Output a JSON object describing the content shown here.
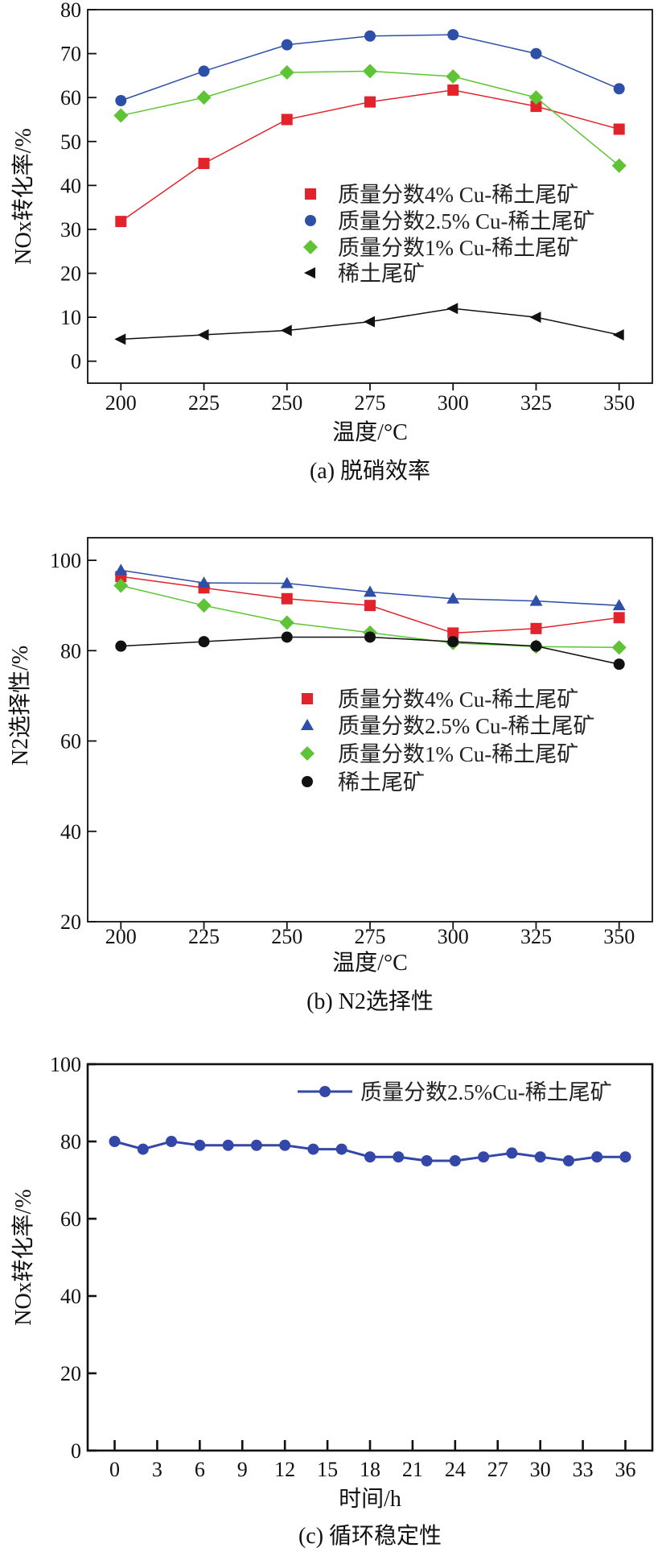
{
  "chart_data": [
    {
      "type": "line",
      "title": "",
      "caption": "(a) 脱硝效率",
      "xlabel": "温度/°C",
      "ylabel": "NOx转化率/%",
      "x": [
        200,
        225,
        250,
        275,
        300,
        325,
        350
      ],
      "xticks": [
        200,
        225,
        250,
        275,
        300,
        325,
        350
      ],
      "yticks": [
        0,
        10,
        20,
        30,
        40,
        50,
        60,
        70,
        80
      ],
      "xlim": [
        190,
        360
      ],
      "ylim": [
        -5,
        80
      ],
      "grid": false,
      "legend_position": "center-right",
      "series": [
        {
          "name": "质量分数4% Cu-稀土尾矿",
          "marker": "square",
          "color": "#e3232b",
          "values": [
            31.8,
            45,
            55,
            59,
            61.7,
            58,
            52.8
          ]
        },
        {
          "name": "质量分数2.5% Cu-稀土尾矿",
          "marker": "circle",
          "color": "#2e4fa8",
          "values": [
            59.3,
            66,
            72,
            74,
            74.3,
            70,
            62
          ]
        },
        {
          "name": "质量分数1% Cu-稀土尾矿",
          "marker": "diamond",
          "color": "#5ec435",
          "values": [
            55.9,
            60,
            65.7,
            66,
            64.8,
            60,
            44.5
          ]
        },
        {
          "name": "稀土尾矿",
          "marker": "triangle-left",
          "color": "#111111",
          "values": [
            5,
            6,
            7,
            9,
            12,
            10,
            6
          ]
        }
      ]
    },
    {
      "type": "line",
      "title": "",
      "caption": "(b) N2选择性",
      "xlabel": "温度/°C",
      "ylabel": "N2选择性/%",
      "x": [
        200,
        225,
        250,
        275,
        300,
        325,
        350
      ],
      "xticks": [
        200,
        225,
        250,
        275,
        300,
        325,
        350
      ],
      "yticks": [
        20,
        40,
        60,
        80,
        100
      ],
      "xlim": [
        190,
        360
      ],
      "ylim": [
        20,
        105
      ],
      "grid": false,
      "legend_position": "center-right",
      "series": [
        {
          "name": "质量分数4% Cu-稀土尾矿",
          "marker": "square",
          "color": "#e3232b",
          "values": [
            96.4,
            93.9,
            91.5,
            90,
            83.9,
            84.9,
            87.3
          ]
        },
        {
          "name": "质量分数2.5% Cu-稀土尾矿",
          "marker": "triangle-up",
          "color": "#2e4fa8",
          "values": [
            97.8,
            95,
            94.9,
            93,
            91.5,
            91,
            90
          ]
        },
        {
          "name": "质量分数1% Cu-稀土尾矿",
          "marker": "diamond",
          "color": "#5ec435",
          "values": [
            94.4,
            90,
            86.2,
            84,
            81.7,
            80.9,
            80.7
          ]
        },
        {
          "name": "稀土尾矿",
          "marker": "circle",
          "color": "#111111",
          "values": [
            81,
            82,
            83,
            83,
            82,
            81,
            77
          ]
        }
      ]
    },
    {
      "type": "line",
      "title": "",
      "caption": "(c) 循环稳定性",
      "xlabel": "时间/h",
      "ylabel": "NOx转化率/%",
      "x": [
        0,
        2,
        4,
        6,
        8,
        10,
        12,
        14,
        16,
        18,
        20,
        22,
        24,
        26,
        28,
        30,
        32,
        34,
        36
      ],
      "xticks": [
        0,
        3,
        6,
        9,
        12,
        15,
        18,
        21,
        24,
        27,
        30,
        33,
        36
      ],
      "yticks": [
        0,
        20,
        40,
        60,
        80,
        100
      ],
      "xlim": [
        -1.9,
        37.9
      ],
      "ylim": [
        0,
        100
      ],
      "grid": false,
      "legend_position": "top-right",
      "series": [
        {
          "name": "质量分数2.5%Cu-稀土尾矿",
          "marker": "circle-line",
          "color": "#3347a8",
          "values": [
            80,
            78,
            80,
            79,
            79,
            79,
            79,
            78,
            78,
            76,
            76,
            75,
            75,
            76,
            77,
            76,
            75,
            76,
            76
          ]
        }
      ]
    }
  ]
}
